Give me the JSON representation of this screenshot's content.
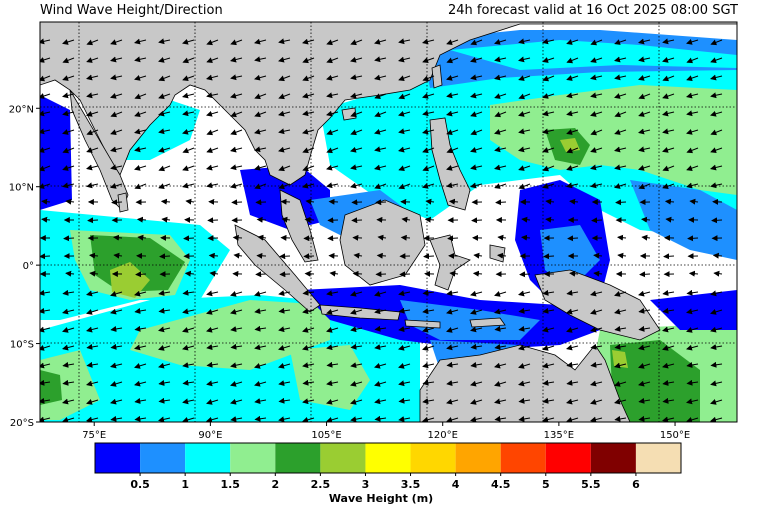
{
  "header": {
    "title": "Wind Wave Height/Direction",
    "valid": "24h forecast valid at 16 Oct 2025 08:00 SGT"
  },
  "map": {
    "lon_range": [
      68,
      158
    ],
    "lat_range": [
      -20,
      31
    ],
    "lon_ticks": [
      {
        "value": 75,
        "label": "75°E"
      },
      {
        "value": 90,
        "label": "90°E"
      },
      {
        "value": 105,
        "label": "105°E"
      },
      {
        "value": 120,
        "label": "120°E"
      },
      {
        "value": 135,
        "label": "135°E"
      },
      {
        "value": 150,
        "label": "150°E"
      }
    ],
    "lat_ticks": [
      {
        "value": 20,
        "label": "20°N"
      },
      {
        "value": 10,
        "label": "10°N"
      },
      {
        "value": 0,
        "label": "0°"
      },
      {
        "value": -10,
        "label": "10°S"
      },
      {
        "value": -20,
        "label": "20°S"
      }
    ],
    "gridlines": true
  },
  "colorbar": {
    "label": "Wave Height (m)",
    "tick_labels": [
      "0.5",
      "1",
      "1.5",
      "2",
      "2.5",
      "3",
      "3.5",
      "4",
      "4.5",
      "5",
      "5.5",
      "6"
    ],
    "colors": [
      "#0000ff",
      "#1e90ff",
      "#00ffff",
      "#90ee90",
      "#2ca02c",
      "#9acd32",
      "#ffff00",
      "#ffd700",
      "#ffa500",
      "#ff4500",
      "#ff0000",
      "#800000",
      "#f5deb3"
    ]
  }
}
